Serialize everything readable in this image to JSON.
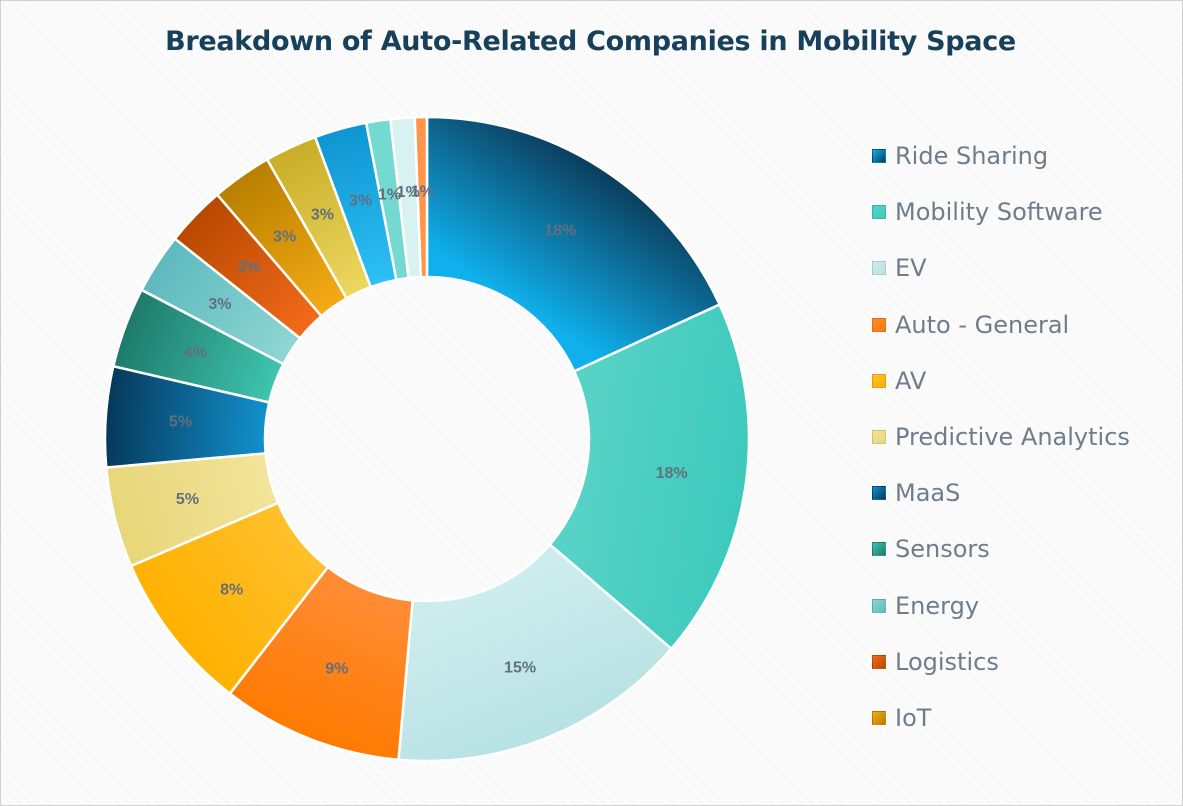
{
  "chart_data": {
    "type": "pie",
    "title": "Breakdown of Auto-Related Companies in Mobility Space",
    "hole": "donut",
    "legend": "right",
    "slices": [
      {
        "name": "Ride Sharing",
        "value": 18,
        "label": "18%",
        "color": "#0fb0ec",
        "dark": "#0b3d5c"
      },
      {
        "name": "Mobility Software",
        "value": 18,
        "label": "18%",
        "color": "#56d2c6",
        "dark": "#3ccabc"
      },
      {
        "name": "EV",
        "value": 15,
        "label": "15%",
        "color": "#cdeced",
        "dark": "#b8e2e4"
      },
      {
        "name": "Auto - General",
        "value": 9,
        "label": "9%",
        "color": "#ff8c35",
        "dark": "#ff7a00"
      },
      {
        "name": "AV",
        "value": 8,
        "label": "8%",
        "color": "#ffc02a",
        "dark": "#ffb100"
      },
      {
        "name": "Predictive Analytics",
        "value": 5,
        "label": "5%",
        "color": "#f2e49a",
        "dark": "#e8d679"
      },
      {
        "name": "MaaS",
        "value": 5,
        "label": "5%",
        "color": "#1290cc",
        "dark": "#06385a"
      },
      {
        "name": "Sensors",
        "value": 4,
        "label": "4%",
        "color": "#3ec4ae",
        "dark": "#1e7a6a"
      },
      {
        "name": "Energy",
        "value": 3,
        "label": "3%",
        "color": "#8ed6d3",
        "dark": "#5eb9bd"
      },
      {
        "name": "Logistics",
        "value": 3,
        "label": "3%",
        "color": "#f26a1b",
        "dark": "#b84800"
      },
      {
        "name": "IoT",
        "value": 3,
        "label": "3%",
        "color": "#f5aa14",
        "dark": "#b87f00"
      },
      {
        "name": "Predictive Analytics",
        "value": 2.6,
        "label": "3%",
        "color": "#ecd760",
        "dark": "#c9ad27",
        "legend": false
      },
      {
        "name": "Ride Sharing",
        "value": 2.6,
        "label": "3%",
        "color": "#2cc0f4",
        "dark": "#0f95d2",
        "legend": false
      },
      {
        "name": "Mobility Software",
        "value": 1.2,
        "label": "1%",
        "color": "#74d9d0",
        "dark": "#74d9d0",
        "legend": false
      },
      {
        "name": "EV",
        "value": 1.2,
        "label": "1%",
        "color": "#d8f2f2",
        "dark": "#d8f2f2",
        "legend": false
      },
      {
        "name": "Auto - General",
        "value": 0.6,
        "label": "1%",
        "color": "#ff944a",
        "dark": "#ff944a",
        "legend": false
      }
    ]
  }
}
